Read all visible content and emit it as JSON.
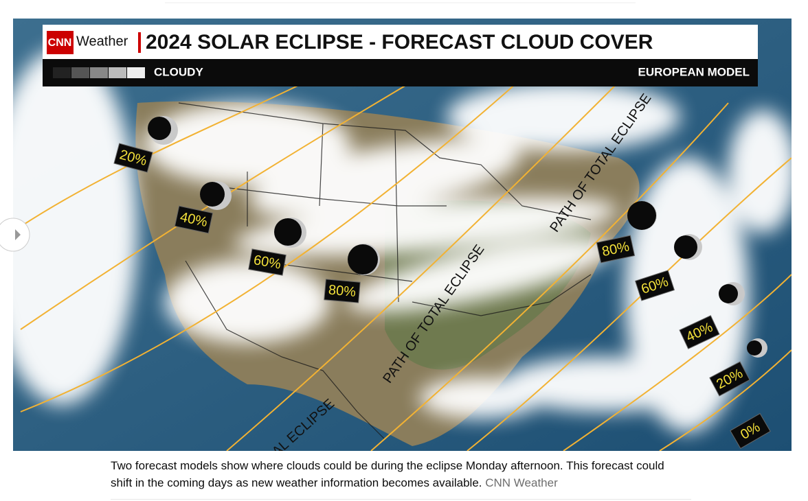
{
  "header": {
    "logo": "CNN",
    "brand": "Weather",
    "title": "2024 SOLAR ECLIPSE - FORECAST CLOUD COVER"
  },
  "legend": {
    "label": "CLOUDY",
    "model": "EUROPEAN MODEL"
  },
  "map": {
    "coverage_labels": [
      "20%",
      "40%",
      "60%",
      "80%",
      "80%",
      "60%",
      "40%",
      "20%",
      "0%"
    ],
    "path_labels": [
      "PATH OF TOTAL ECLIPSE",
      "PATH OF TOTAL ECLIPSE",
      "AL ECLIPSE"
    ]
  },
  "caption": {
    "text": "Two forecast models show where clouds could be during the eclipse Monday afternoon. This forecast could shift in the coming days as new weather information becomes available.",
    "credit": "CNN Weather"
  }
}
